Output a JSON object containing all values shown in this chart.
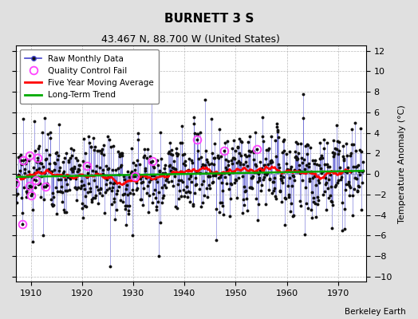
{
  "title": "BURNETT 3 S",
  "subtitle": "43.467 N, 88.700 W (United States)",
  "ylabel": "Temperature Anomaly (°C)",
  "credit": "Berkeley Earth",
  "year_start": 1905,
  "year_end": 1975,
  "ylim": [
    -10.5,
    12.5
  ],
  "yticks": [
    -10,
    -8,
    -6,
    -4,
    -2,
    0,
    2,
    4,
    6,
    8,
    10,
    12
  ],
  "xticks": [
    1910,
    1920,
    1930,
    1940,
    1950,
    1960,
    1970
  ],
  "bg_color": "#e0e0e0",
  "plot_bg_color": "#ffffff",
  "line_color_raw": "#4444cc",
  "dot_color_raw": "#111111",
  "moving_avg_color": "#ff0000",
  "trend_color": "#00aa00",
  "qc_fail_color": "#ff44ff",
  "seed": 17,
  "noise_scale": 2.2,
  "n_qc": 16
}
